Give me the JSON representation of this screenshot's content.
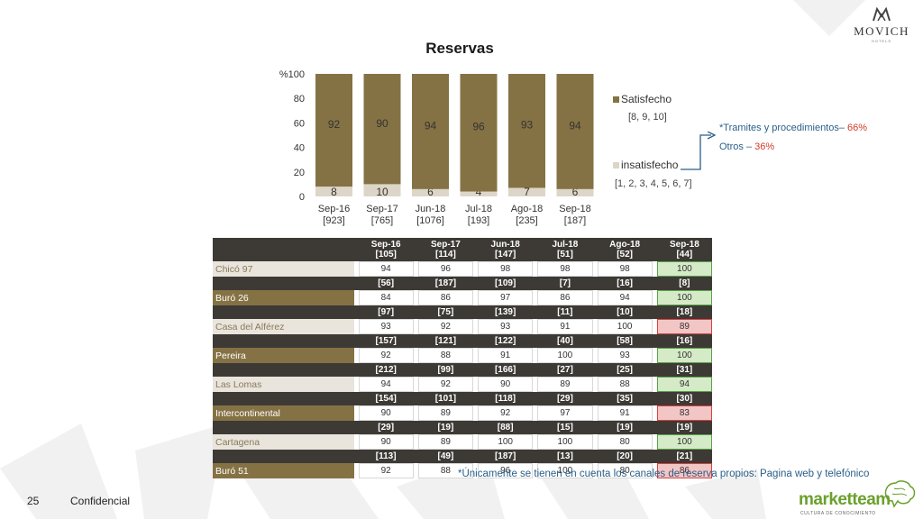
{
  "brand": {
    "name": "MOVICH",
    "sub": "HOTELS",
    "footer_logo": "marketteam",
    "footer_logo_sub": "CULTURA DE CONOCIMIENTO"
  },
  "page": {
    "number": "25",
    "confidential": "Confidencial"
  },
  "chart_data": {
    "type": "bar",
    "stacked": true,
    "title": "Reservas",
    "ylabel": "%",
    "ylim": [
      0,
      100
    ],
    "yticks": [
      0,
      20,
      40,
      60,
      80,
      100
    ],
    "categories": [
      "Sep-16",
      "Sep-17",
      "Jun-18",
      "Jul-18",
      "Ago-18",
      "Sep-18"
    ],
    "category_counts": [
      "[923]",
      "[765]",
      "[1076]",
      "[193]",
      "[235]",
      "[187]"
    ],
    "series": [
      {
        "name": "insatisfecho",
        "range": "[1, 2, 3, 4, 5, 6, 7]",
        "color": "#ddd6c8",
        "values": [
          8,
          10,
          6,
          4,
          7,
          6
        ]
      },
      {
        "name": "Satisfecho",
        "range": "[8, 9, 10]",
        "color": "#857244",
        "values": [
          92,
          90,
          94,
          96,
          93,
          94
        ]
      }
    ],
    "legend": "right"
  },
  "side_notes": [
    {
      "label": "*Tramites y procedimientos– ",
      "pct": "66%"
    },
    {
      "label": "Otros – ",
      "pct": "36%"
    }
  ],
  "table": {
    "columns": [
      "Sep-16",
      "Sep-17",
      "Jun-18",
      "Jul-18",
      "Ago-18",
      "Sep-18"
    ],
    "header_counts": [
      "[105]",
      "[114]",
      "[147]",
      "[51]",
      "[52]",
      "[44]"
    ],
    "rows": [
      {
        "name": "Chicó 97",
        "style": "light",
        "values": [
          "94",
          "96",
          "98",
          "98",
          "98",
          "100"
        ],
        "last": "good"
      },
      {
        "name": "Buró 26",
        "style": "dark",
        "counts": [
          "[56]",
          "[187]",
          "[109]",
          "[7]",
          "[16]",
          "[8]"
        ],
        "values": [
          "84",
          "86",
          "97",
          "86",
          "94",
          "100"
        ],
        "last": "good"
      },
      {
        "name": "Casa del Alférez",
        "style": "light",
        "counts": [
          "[97]",
          "[75]",
          "[139]",
          "[11]",
          "[10]",
          "[18]"
        ],
        "values": [
          "93",
          "92",
          "93",
          "91",
          "100",
          "89"
        ],
        "last": "bad"
      },
      {
        "name": "Pereira",
        "style": "dark",
        "counts": [
          "[157]",
          "[121]",
          "[122]",
          "[40]",
          "[58]",
          "[16]"
        ],
        "values": [
          "92",
          "88",
          "91",
          "100",
          "93",
          "100"
        ],
        "last": "good"
      },
      {
        "name": "Las Lomas",
        "style": "light",
        "counts": [
          "[212]",
          "[99]",
          "[166]",
          "[27]",
          "[25]",
          "[31]"
        ],
        "values": [
          "94",
          "92",
          "90",
          "89",
          "88",
          "94"
        ],
        "last": "good"
      },
      {
        "name": "Intercontinental",
        "style": "dark",
        "counts": [
          "[154]",
          "[101]",
          "[118]",
          "[29]",
          "[35]",
          "[30]"
        ],
        "values": [
          "90",
          "89",
          "92",
          "97",
          "91",
          "83"
        ],
        "last": "bad"
      },
      {
        "name": "Cartagena",
        "style": "light",
        "counts": [
          "[29]",
          "[19]",
          "[88]",
          "[15]",
          "[19]",
          "[19]"
        ],
        "values": [
          "90",
          "89",
          "100",
          "100",
          "80",
          "100"
        ],
        "last": "good"
      },
      {
        "name": "Buró 51",
        "style": "dark",
        "counts": [
          "[113]",
          "[49]",
          "[187]",
          "[13]",
          "[20]",
          "[21]"
        ],
        "values": [
          "92",
          "88",
          "96",
          "100",
          "80",
          "86"
        ],
        "last": "bad"
      }
    ]
  },
  "footnote": "*Únicamente se tienen en cuenta los canales de reserva propios: Pagina web y telefónico"
}
